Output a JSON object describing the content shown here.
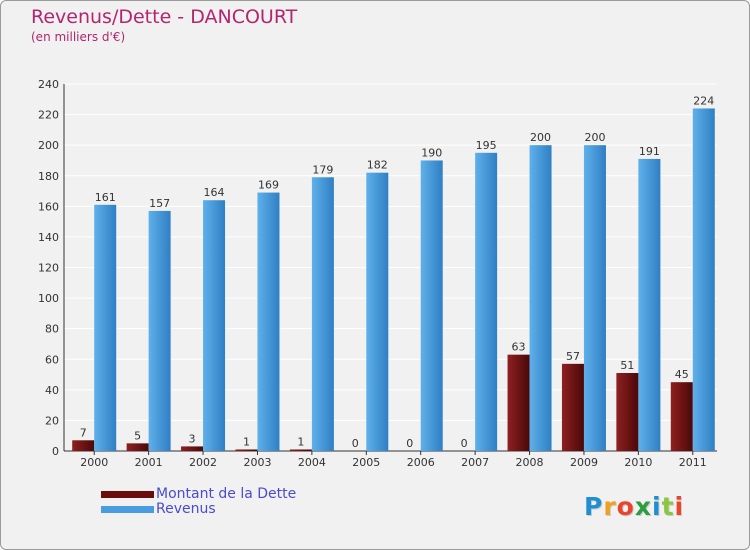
{
  "chart_data": {
    "type": "bar",
    "title": "Revenus/Dette - DANCOURT",
    "subtitle": "(en milliers d'€)",
    "xlabel": "",
    "ylabel": "",
    "categories": [
      "2000",
      "2001",
      "2002",
      "2003",
      "2004",
      "2005",
      "2006",
      "2007",
      "2008",
      "2009",
      "2010",
      "2011"
    ],
    "series": [
      {
        "name": "Montant de la Dette",
        "color": "#6b0d0d",
        "values": [
          7,
          5,
          3,
          1,
          1,
          0,
          0,
          0,
          63,
          57,
          51,
          45
        ]
      },
      {
        "name": "Revenus",
        "color": "#4a9ce0",
        "values": [
          161,
          157,
          164,
          169,
          179,
          182,
          190,
          195,
          200,
          200,
          191,
          224
        ]
      }
    ],
    "ylim": [
      0,
      240
    ],
    "yticks": [
      0,
      20,
      40,
      60,
      80,
      100,
      120,
      140,
      160,
      180,
      200,
      220,
      240
    ],
    "grid": true,
    "legend_position": "bottom-left"
  },
  "legend": [
    {
      "label": "Montant de la Dette",
      "color": "#6b0d0d"
    },
    {
      "label": "Revenus",
      "color": "#4a9ce0"
    }
  ],
  "logo": {
    "letters": [
      "P",
      "r",
      "o",
      "x",
      "i",
      "t",
      "i"
    ],
    "colors": [
      "#1f8fd1",
      "#f0a020",
      "#e9452b",
      "#2c9e3f",
      "#1f8fd1",
      "#8cc63f",
      "#e9452b"
    ]
  }
}
